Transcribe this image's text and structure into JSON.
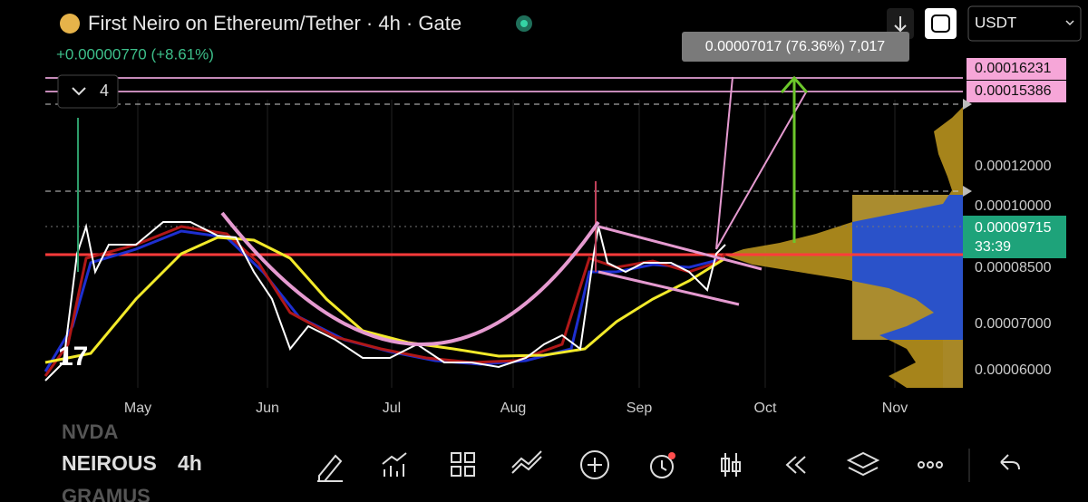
{
  "header": {
    "title": "First Neiro on Ethereum/Tether · 4h · Gate",
    "change": "+0.00000770 (+8.61%)",
    "indicator_count": "4"
  },
  "controls": {
    "currency": "USDT"
  },
  "measure_label": "0.00007017 (76.36%) 7,017",
  "price_axis": {
    "labels": [
      "0.00016231",
      "0.00015386",
      "0.00012000",
      "0.00010000",
      "0.00008500",
      "0.00007000",
      "0.00006000"
    ],
    "current_price": "0.00009715",
    "countdown": "33:39"
  },
  "time_axis": [
    "May",
    "Jun",
    "Jul",
    "Aug",
    "Sep",
    "Oct",
    "Nov"
  ],
  "watchlist": [
    "NVDA",
    "NEIROUS",
    "GRAMUS"
  ],
  "interval": "4h"
}
